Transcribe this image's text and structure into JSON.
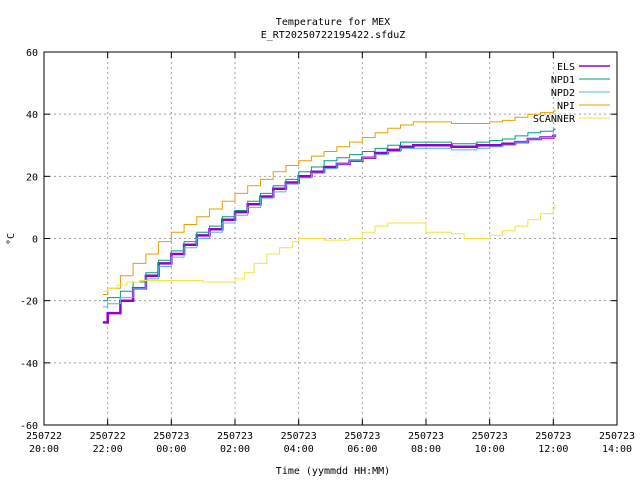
{
  "chart_data": {
    "type": "line",
    "title": "Temperature for MEX",
    "subtitle": "E_RT20250722195422.sfduZ",
    "xlabel": "Time (yymmdd HH:MM)",
    "ylabel": "°C",
    "xlim": [
      20,
      38
    ],
    "ylim": [
      -60,
      60
    ],
    "grid": true,
    "legend_position": "top-right",
    "x_ticks": [
      {
        "x": 20,
        "date": "250722",
        "time": "20:00"
      },
      {
        "x": 22,
        "date": "250722",
        "time": "22:00"
      },
      {
        "x": 24,
        "date": "250723",
        "time": "00:00"
      },
      {
        "x": 26,
        "date": "250723",
        "time": "02:00"
      },
      {
        "x": 28,
        "date": "250723",
        "time": "04:00"
      },
      {
        "x": 30,
        "date": "250723",
        "time": "06:00"
      },
      {
        "x": 32,
        "date": "250723",
        "time": "08:00"
      },
      {
        "x": 34,
        "date": "250723",
        "time": "10:00"
      },
      {
        "x": 36,
        "date": "250723",
        "time": "12:00"
      },
      {
        "x": 38,
        "date": "250723",
        "time": "14:00"
      }
    ],
    "y_ticks": [
      -60,
      -40,
      -20,
      0,
      20,
      40,
      60
    ],
    "series": [
      {
        "name": "ELS",
        "color": "#9400d3",
        "width": 2.5,
        "points": [
          [
            21.85,
            -27
          ],
          [
            22.0,
            -24
          ],
          [
            22.4,
            -20
          ],
          [
            22.8,
            -16
          ],
          [
            23.2,
            -12
          ],
          [
            23.6,
            -8
          ],
          [
            24.0,
            -5
          ],
          [
            24.4,
            -2
          ],
          [
            24.8,
            1
          ],
          [
            25.2,
            3
          ],
          [
            25.6,
            6
          ],
          [
            26.0,
            8.5
          ],
          [
            26.4,
            11
          ],
          [
            26.8,
            13.5
          ],
          [
            27.2,
            16
          ],
          [
            27.6,
            18
          ],
          [
            28.0,
            20
          ],
          [
            28.4,
            21.5
          ],
          [
            28.8,
            23
          ],
          [
            29.2,
            24
          ],
          [
            29.6,
            25
          ],
          [
            30.0,
            26
          ],
          [
            30.4,
            27.5
          ],
          [
            30.8,
            28.5
          ],
          [
            31.2,
            29.5
          ],
          [
            31.6,
            30
          ],
          [
            32.0,
            30
          ],
          [
            32.4,
            30
          ],
          [
            32.8,
            29.5
          ],
          [
            33.2,
            29.5
          ],
          [
            33.6,
            30
          ],
          [
            34.0,
            30
          ],
          [
            34.4,
            30.5
          ],
          [
            34.8,
            31
          ],
          [
            35.2,
            32
          ],
          [
            35.6,
            32.5
          ],
          [
            36.0,
            33
          ],
          [
            36.05,
            33.5
          ]
        ]
      },
      {
        "name": "NPD1",
        "color": "#009e73",
        "width": 1,
        "points": [
          [
            21.85,
            -20
          ],
          [
            22.0,
            -19
          ],
          [
            22.4,
            -17
          ],
          [
            22.8,
            -14
          ],
          [
            23.2,
            -11
          ],
          [
            23.6,
            -7
          ],
          [
            24.0,
            -4
          ],
          [
            24.4,
            -1
          ],
          [
            24.8,
            2
          ],
          [
            25.2,
            4
          ],
          [
            25.6,
            7
          ],
          [
            26.0,
            9
          ],
          [
            26.4,
            12
          ],
          [
            26.8,
            14.5
          ],
          [
            27.2,
            17
          ],
          [
            27.6,
            19
          ],
          [
            28.0,
            21.5
          ],
          [
            28.4,
            23
          ],
          [
            28.8,
            25
          ],
          [
            29.2,
            26
          ],
          [
            29.6,
            27
          ],
          [
            30.0,
            28
          ],
          [
            30.4,
            29
          ],
          [
            30.8,
            30
          ],
          [
            31.2,
            31
          ],
          [
            31.6,
            31
          ],
          [
            32.0,
            31
          ],
          [
            32.4,
            31
          ],
          [
            32.8,
            30.5
          ],
          [
            33.2,
            30.5
          ],
          [
            33.6,
            31
          ],
          [
            34.0,
            31.5
          ],
          [
            34.4,
            32
          ],
          [
            34.8,
            33
          ],
          [
            35.2,
            34
          ],
          [
            35.6,
            34.5
          ],
          [
            36.0,
            35
          ],
          [
            36.05,
            35.5
          ]
        ]
      },
      {
        "name": "NPD2",
        "color": "#56b4e9",
        "width": 1,
        "points": [
          [
            21.85,
            -22
          ],
          [
            22.0,
            -21
          ],
          [
            22.4,
            -19
          ],
          [
            22.8,
            -16
          ],
          [
            23.2,
            -13
          ],
          [
            23.6,
            -9
          ],
          [
            24.0,
            -6
          ],
          [
            24.4,
            -3
          ],
          [
            24.8,
            0
          ],
          [
            25.2,
            2
          ],
          [
            25.6,
            5
          ],
          [
            26.0,
            7.5
          ],
          [
            26.4,
            10
          ],
          [
            26.8,
            13
          ],
          [
            27.2,
            15
          ],
          [
            27.6,
            17.5
          ],
          [
            28.0,
            19.5
          ],
          [
            28.4,
            21
          ],
          [
            28.8,
            22.5
          ],
          [
            29.2,
            24
          ],
          [
            29.6,
            25
          ],
          [
            30.0,
            26
          ],
          [
            30.4,
            27
          ],
          [
            30.8,
            28
          ],
          [
            31.2,
            29
          ],
          [
            31.6,
            29
          ],
          [
            32.0,
            29
          ],
          [
            32.4,
            29
          ],
          [
            32.8,
            28.5
          ],
          [
            33.2,
            28.5
          ],
          [
            33.6,
            29
          ],
          [
            34.0,
            29.5
          ],
          [
            34.4,
            30
          ],
          [
            34.8,
            31
          ],
          [
            35.2,
            32
          ],
          [
            35.6,
            32.5
          ],
          [
            36.0,
            33
          ],
          [
            36.05,
            33.5
          ]
        ]
      },
      {
        "name": "NPI",
        "color": "#e69f00",
        "width": 1,
        "points": [
          [
            21.85,
            -18
          ],
          [
            22.0,
            -16
          ],
          [
            22.4,
            -12
          ],
          [
            22.8,
            -8
          ],
          [
            23.2,
            -5
          ],
          [
            23.6,
            -1
          ],
          [
            24.0,
            2
          ],
          [
            24.4,
            4.5
          ],
          [
            24.8,
            7
          ],
          [
            25.2,
            9.5
          ],
          [
            25.6,
            12
          ],
          [
            26.0,
            14.5
          ],
          [
            26.4,
            17
          ],
          [
            26.8,
            19
          ],
          [
            27.2,
            21.5
          ],
          [
            27.6,
            23.5
          ],
          [
            28.0,
            25
          ],
          [
            28.4,
            26.5
          ],
          [
            28.8,
            28
          ],
          [
            29.2,
            29.5
          ],
          [
            29.6,
            31
          ],
          [
            30.0,
            32.5
          ],
          [
            30.4,
            34
          ],
          [
            30.8,
            35.5
          ],
          [
            31.2,
            36.5
          ],
          [
            31.6,
            37.5
          ],
          [
            32.0,
            37.5
          ],
          [
            32.4,
            37.5
          ],
          [
            32.8,
            37
          ],
          [
            33.2,
            37
          ],
          [
            33.6,
            37
          ],
          [
            34.0,
            37.5
          ],
          [
            34.4,
            38
          ],
          [
            34.8,
            39
          ],
          [
            35.2,
            40
          ],
          [
            35.6,
            40.5
          ],
          [
            36.0,
            41
          ],
          [
            36.05,
            41.5
          ]
        ]
      },
      {
        "name": "SCANNER",
        "color": "#f0e442",
        "width": 1,
        "points": [
          [
            21.85,
            -17
          ],
          [
            22.0,
            -16
          ],
          [
            22.3,
            -15
          ],
          [
            22.6,
            -14
          ],
          [
            23.0,
            -13.5
          ],
          [
            23.5,
            -13.5
          ],
          [
            24.0,
            -13.5
          ],
          [
            24.5,
            -13.5
          ],
          [
            25.0,
            -14
          ],
          [
            25.5,
            -14
          ],
          [
            26.0,
            -13
          ],
          [
            26.3,
            -11
          ],
          [
            26.6,
            -8
          ],
          [
            27.0,
            -5
          ],
          [
            27.4,
            -3
          ],
          [
            27.8,
            -1
          ],
          [
            28.0,
            0
          ],
          [
            28.4,
            0
          ],
          [
            28.8,
            -0.5
          ],
          [
            29.2,
            -0.5
          ],
          [
            29.6,
            0
          ],
          [
            30.0,
            2
          ],
          [
            30.4,
            4
          ],
          [
            30.8,
            5
          ],
          [
            31.2,
            5
          ],
          [
            31.6,
            5
          ],
          [
            32.0,
            2
          ],
          [
            32.4,
            2
          ],
          [
            32.8,
            1.5
          ],
          [
            33.2,
            0
          ],
          [
            33.6,
            0
          ],
          [
            34.0,
            1
          ],
          [
            34.4,
            2.5
          ],
          [
            34.8,
            4
          ],
          [
            35.2,
            6
          ],
          [
            35.6,
            8
          ],
          [
            36.0,
            9.5
          ],
          [
            36.05,
            11
          ]
        ]
      }
    ]
  }
}
